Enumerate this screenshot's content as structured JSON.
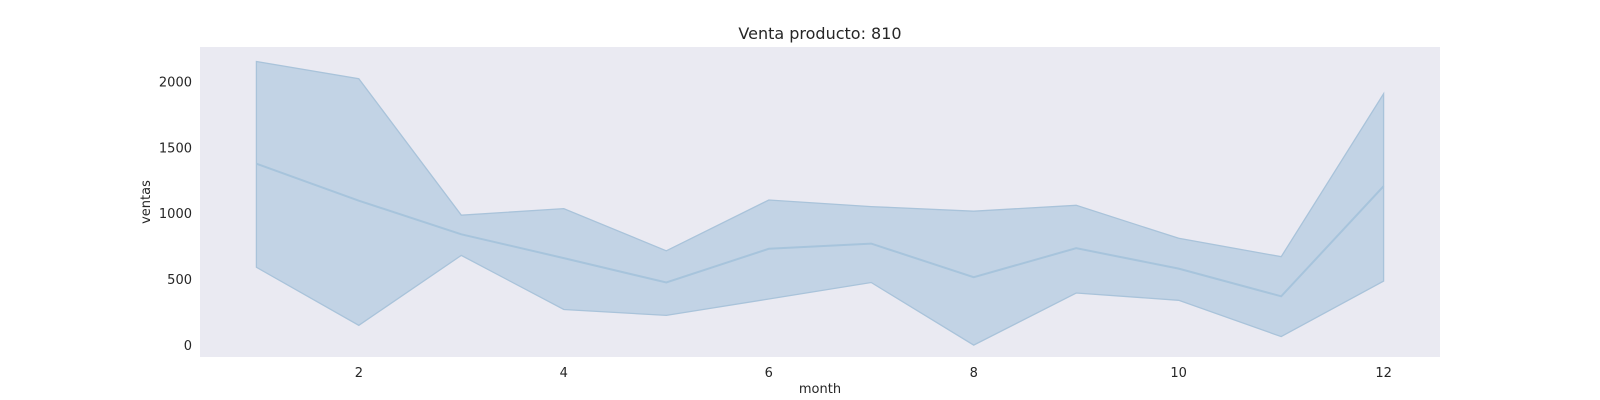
{
  "chart_data": {
    "type": "line",
    "title": "Venta producto: 810",
    "xlabel": "month",
    "ylabel": "ventas",
    "xlim": [
      0.45,
      12.55
    ],
    "ylim": [
      -90,
      2260
    ],
    "x_ticks": [
      2,
      4,
      6,
      8,
      10,
      12
    ],
    "y_ticks": [
      0,
      500,
      1000,
      1500,
      2000
    ],
    "grid": false,
    "colors": {
      "line": "#a7c4dc",
      "band_fill": "#c2d3e5",
      "band_edge": "#a9c3da",
      "plot_bg": "#eaeaf2"
    },
    "series": [
      {
        "x": [
          1,
          2,
          3,
          4,
          5,
          6,
          7,
          8,
          9,
          10,
          11,
          12
        ],
        "mean": [
          1375,
          1095,
          840,
          660,
          475,
          730,
          770,
          515,
          735,
          580,
          370,
          1205
        ],
        "lower": [
          590,
          150,
          680,
          270,
          225,
          350,
          475,
          0,
          395,
          340,
          65,
          485
        ],
        "upper": [
          2150,
          2020,
          985,
          1035,
          715,
          1100,
          1050,
          1015,
          1060,
          810,
          670,
          1905
        ]
      }
    ]
  }
}
